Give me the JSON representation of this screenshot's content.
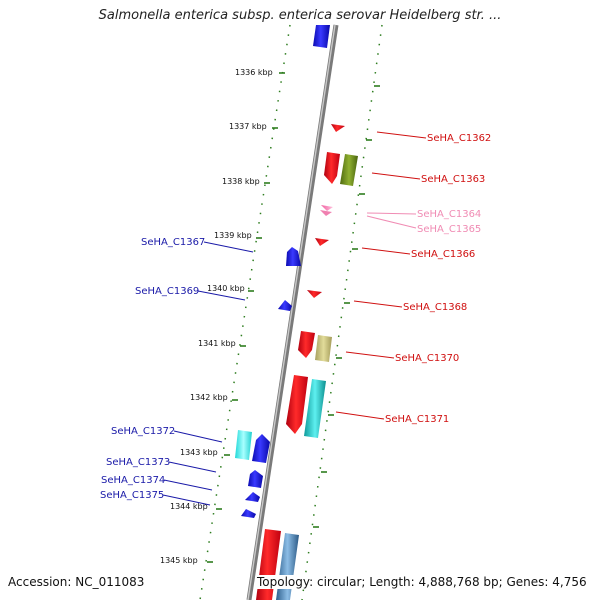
{
  "header": {
    "title": "Salmonella enterica subsp. enterica serovar Heidelberg str. ..."
  },
  "footer": {
    "accession": "Accession: NC_011083",
    "topology": "Topology: circular; Length: 4,888,768 bp; Genes: 4,756"
  },
  "colors": {
    "backbone": "#8a8a8a",
    "tick": "#2e7d1f",
    "forward_strand_gene": "#e0101b",
    "reverse_strand_gene": "#1010e0",
    "label_forward": "#d01010",
    "label_reverse": "#1a1aa8",
    "label_faded": "#f08cb4",
    "olive_gene": "#6f8f1f",
    "khaki_gene": "#c8c27a",
    "teal_gene": "#19c3c3",
    "cyan_gene": "#3df0f0",
    "steel_gene": "#4f86b5"
  },
  "ticks": {
    "labels": [
      "1336 kbp",
      "1337 kbp",
      "1338 kbp",
      "1339 kbp",
      "1340 kbp",
      "1341 kbp",
      "1342 kbp",
      "1343 kbp",
      "1344 kbp",
      "1345 kbp"
    ]
  },
  "gene_labels": {
    "right": [
      {
        "name": "SeHA_C1362",
        "color_key": "label_forward"
      },
      {
        "name": "SeHA_C1363",
        "color_key": "label_forward"
      },
      {
        "name": "SeHA_C1364",
        "color_key": "label_faded"
      },
      {
        "name": "SeHA_C1365",
        "color_key": "label_faded"
      },
      {
        "name": "SeHA_C1366",
        "color_key": "label_forward"
      },
      {
        "name": "SeHA_C1368",
        "color_key": "label_forward"
      },
      {
        "name": "SeHA_C1370",
        "color_key": "label_forward"
      },
      {
        "name": "SeHA_C1371",
        "color_key": "label_forward"
      }
    ],
    "left": [
      {
        "name": "SeHA_C1367",
        "color_key": "label_reverse"
      },
      {
        "name": "SeHA_C1369",
        "color_key": "label_reverse"
      },
      {
        "name": "SeHA_C1372",
        "color_key": "label_reverse"
      },
      {
        "name": "SeHA_C1373",
        "color_key": "label_reverse"
      },
      {
        "name": "SeHA_C1374",
        "color_key": "label_reverse"
      },
      {
        "name": "SeHA_C1375",
        "color_key": "label_reverse"
      }
    ]
  }
}
